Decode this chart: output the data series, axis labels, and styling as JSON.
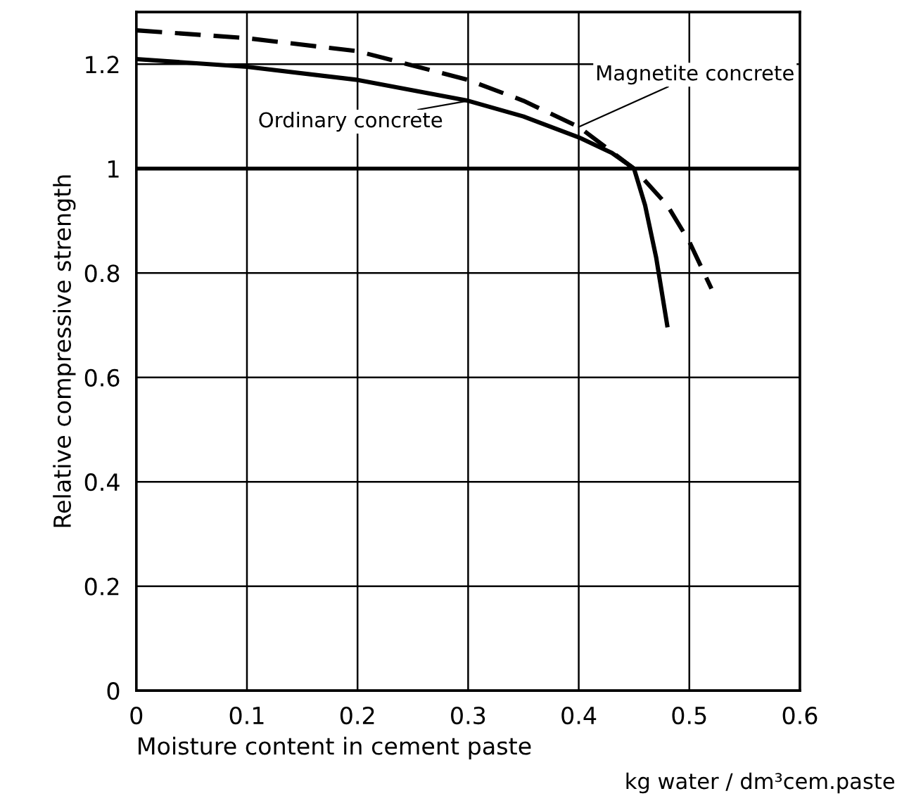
{
  "chart_data": {
    "type": "line",
    "xlabel": "Moisture content in cement paste",
    "ylabel": "Relative compressive strength",
    "annotations": [
      "kg water / dm³cem.paste"
    ],
    "series": [
      {
        "name": "Ordinary concrete",
        "color": "#000000",
        "line_style": "solid",
        "x": [
          0,
          0.1,
          0.2,
          0.3,
          0.35,
          0.4,
          0.43,
          0.45,
          0.46,
          0.47,
          0.48
        ],
        "values": [
          1.21,
          1.195,
          1.17,
          1.13,
          1.1,
          1.06,
          1.03,
          1.0,
          0.93,
          0.83,
          0.7
        ]
      },
      {
        "name": "Magnetite concrete",
        "color": "#000000",
        "line_style": "dashed",
        "x": [
          0,
          0.1,
          0.2,
          0.3,
          0.35,
          0.4,
          0.45,
          0.48,
          0.5,
          0.52
        ],
        "values": [
          1.265,
          1.25,
          1.225,
          1.17,
          1.13,
          1.08,
          1.0,
          0.93,
          0.86,
          0.77
        ]
      }
    ],
    "xlim": [
      0,
      0.6
    ],
    "ylim": [
      0,
      1.3
    ],
    "xticks": [
      0,
      0.1,
      0.2,
      0.3,
      0.4,
      0.5,
      0.6
    ],
    "yticks": [
      0,
      0.2,
      0.4,
      0.6,
      0.8,
      1,
      1.2
    ],
    "ref_lines": [
      {
        "axis": "y",
        "value": 1,
        "color": "#000000"
      }
    ],
    "grid": true
  }
}
